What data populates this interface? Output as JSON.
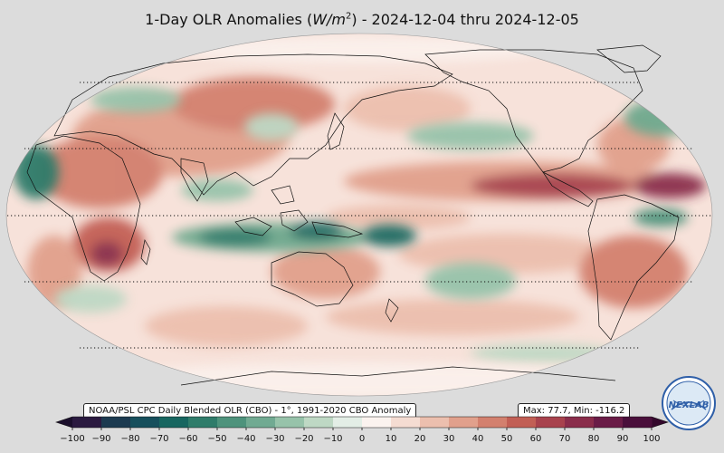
{
  "title": {
    "prefix": "1-Day OLR Anomalies (",
    "unit_base": "W/m",
    "unit_exp": "2",
    "suffix": ") - 2024-12-04 thru 2024-12-05"
  },
  "source_label": "NOAA/PSL CPC Daily Blended OLR (CBO) - 1°, 1991-2020 CBO Anomaly",
  "stats_label": "Max: 77.7,  Min: -116.2",
  "logo_text": "NEXLAB",
  "colorbar": {
    "ticks": [
      "−100",
      "−90",
      "−80",
      "−70",
      "−60",
      "−50",
      "−40",
      "−30",
      "−20",
      "−10",
      "0",
      "10",
      "20",
      "30",
      "40",
      "50",
      "60",
      "70",
      "80",
      "90",
      "100"
    ],
    "colors": [
      "#2b1a40",
      "#1c3a50",
      "#164f5c",
      "#176660",
      "#2f7c6a",
      "#4e937c",
      "#71aa92",
      "#97c3aa",
      "#bed8c4",
      "#e3eee6",
      "#fbf3ef",
      "#f5dcd2",
      "#ecbfae",
      "#e1a08c",
      "#d3806e",
      "#c25f55",
      "#a8424d",
      "#8a2d4b",
      "#6a1c47",
      "#4a0f3b"
    ],
    "min_color": "#1b0f2c",
    "max_color": "#34082c"
  },
  "map_colors": {
    "ocean_base": "#f7e2da",
    "neutral": "#fbf3ef",
    "green_light": "#bcd9c2",
    "green_mid": "#6ea98e",
    "green_dark": "#1d6a62",
    "red_light": "#ecbfae",
    "red_mid": "#d3806e",
    "red_dark": "#a8424d",
    "purple": "#7a234a"
  }
}
